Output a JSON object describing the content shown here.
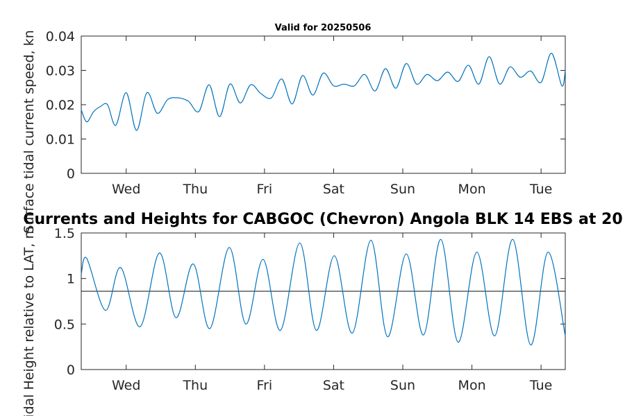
{
  "chart_data": [
    {
      "type": "line",
      "title": "Valid for 20250506",
      "xlabel": "",
      "ylabel": "Surface tidal current speed, kn",
      "ylim": [
        0,
        0.04
      ],
      "yticks": [
        "0",
        "0.01",
        "0.02",
        "0.03",
        "0.04"
      ],
      "xlim": [
        0,
        7
      ],
      "xticks": [
        {
          "x": 0.65,
          "label": "Wed"
        },
        {
          "x": 1.65,
          "label": "Thu"
        },
        {
          "x": 2.65,
          "label": "Fri"
        },
        {
          "x": 3.65,
          "label": "Sat"
        },
        {
          "x": 4.65,
          "label": "Sun"
        },
        {
          "x": 5.65,
          "label": "Mon"
        },
        {
          "x": 6.65,
          "label": "Tue"
        }
      ],
      "series": [
        {
          "color": "#0072BD",
          "x": [
            0.0,
            0.08,
            0.18,
            0.28,
            0.38,
            0.5,
            0.65,
            0.8,
            0.95,
            1.1,
            1.25,
            1.4,
            1.55,
            1.7,
            1.85,
            2.0,
            2.15,
            2.3,
            2.45,
            2.6,
            2.75,
            2.9,
            3.05,
            3.2,
            3.35,
            3.5,
            3.65,
            3.8,
            3.95,
            4.1,
            4.25,
            4.4,
            4.55,
            4.7,
            4.85,
            5.0,
            5.15,
            5.3,
            5.45,
            5.6,
            5.75,
            5.9,
            6.05,
            6.2,
            6.35,
            6.5,
            6.65,
            6.8,
            6.95,
            7.0
          ],
          "y": [
            0.0185,
            0.015,
            0.018,
            0.0195,
            0.02,
            0.014,
            0.0235,
            0.0125,
            0.0235,
            0.0175,
            0.0215,
            0.022,
            0.021,
            0.018,
            0.0258,
            0.0165,
            0.026,
            0.0205,
            0.0258,
            0.0232,
            0.022,
            0.0275,
            0.0202,
            0.0285,
            0.0228,
            0.0292,
            0.0255,
            0.026,
            0.0255,
            0.0288,
            0.024,
            0.0305,
            0.0248,
            0.032,
            0.026,
            0.0288,
            0.027,
            0.0295,
            0.0268,
            0.0315,
            0.026,
            0.034,
            0.026,
            0.031,
            0.028,
            0.0298,
            0.0265,
            0.035,
            0.0255,
            0.03
          ]
        }
      ]
    },
    {
      "type": "line",
      "title": "Currents and Heights for CABGOC (Chevron)  Angola BLK 14  EBS at 20",
      "xlabel": "",
      "ylabel": "Tidal Height relative to LAT, m",
      "ylim": [
        0,
        1.5
      ],
      "yticks": [
        "0",
        "0.5",
        "1",
        "1.5"
      ],
      "xlim": [
        0,
        7
      ],
      "xticks": [
        {
          "x": 0.65,
          "label": "Wed"
        },
        {
          "x": 1.65,
          "label": "Thu"
        },
        {
          "x": 2.65,
          "label": "Fri"
        },
        {
          "x": 3.65,
          "label": "Sat"
        },
        {
          "x": 4.65,
          "label": "Sun"
        },
        {
          "x": 5.65,
          "label": "Mon"
        },
        {
          "x": 6.65,
          "label": "Tue"
        }
      ],
      "reference_line": 0.86,
      "series": [
        {
          "color": "#0072BD",
          "x": [
            0.0,
            0.08,
            0.35,
            0.57,
            0.85,
            1.13,
            1.37,
            1.62,
            1.86,
            2.14,
            2.38,
            2.63,
            2.88,
            3.16,
            3.4,
            3.66,
            3.92,
            4.19,
            4.43,
            4.7,
            4.95,
            5.2,
            5.45,
            5.72,
            5.98,
            6.24,
            6.5,
            6.75,
            7.0
          ],
          "y": [
            1.05,
            1.22,
            0.65,
            1.12,
            0.47,
            1.28,
            0.57,
            1.16,
            0.45,
            1.34,
            0.5,
            1.21,
            0.43,
            1.39,
            0.43,
            1.25,
            0.4,
            1.42,
            0.36,
            1.27,
            0.38,
            1.43,
            0.3,
            1.29,
            0.37,
            1.43,
            0.27,
            1.29,
            0.37
          ]
        }
      ]
    }
  ]
}
